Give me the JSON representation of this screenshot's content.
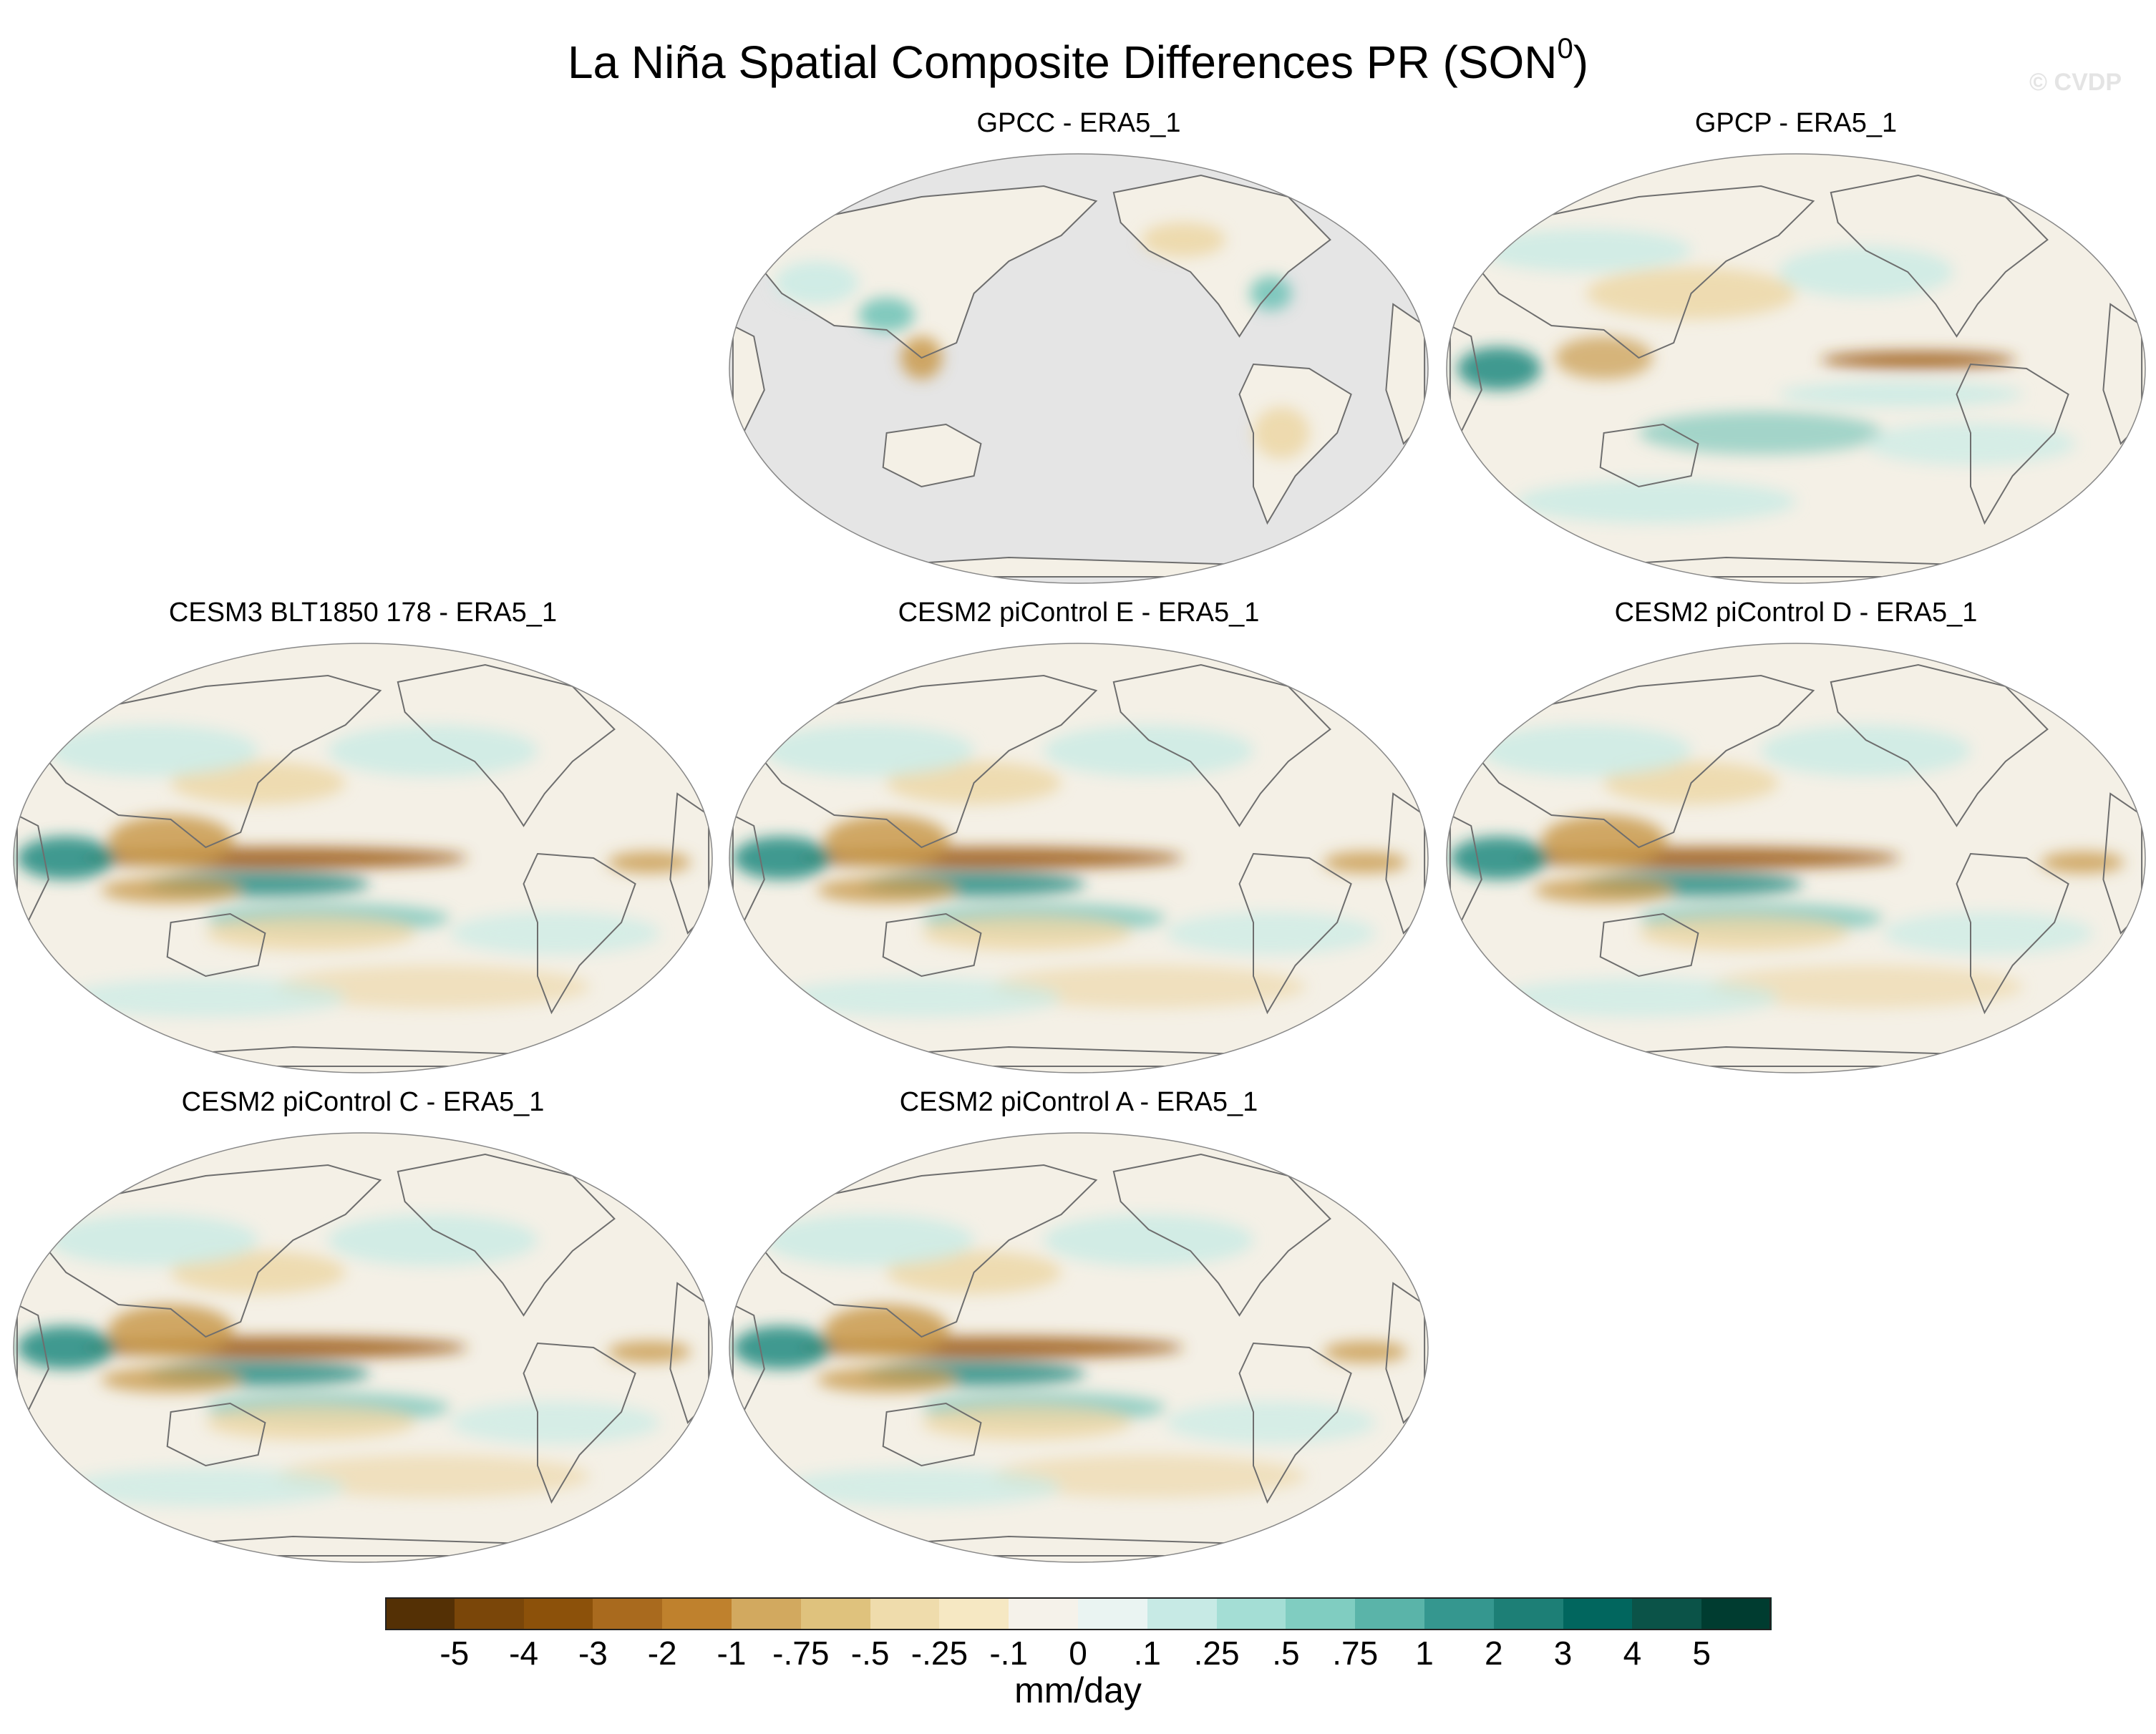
{
  "figure": {
    "title_main": "La Niña Spatial Composite Differences PR (SON",
    "title_sup": "0",
    "title_close": ")",
    "watermark": "© CVDP"
  },
  "panels": [
    {
      "id": "gpcc",
      "title": "GPCC - ERA5_1",
      "land_only": true
    },
    {
      "id": "gpcp",
      "title": "GPCP - ERA5_1",
      "land_only": false
    },
    {
      "id": "cesm3",
      "title": "CESM3 BLT1850 178 - ERA5_1",
      "land_only": false
    },
    {
      "id": "cesm2e",
      "title": "CESM2 piControl E - ERA5_1",
      "land_only": false
    },
    {
      "id": "cesm2d",
      "title": "CESM2 piControl D - ERA5_1",
      "land_only": false
    },
    {
      "id": "cesm2c",
      "title": "CESM2 piControl C - ERA5_1",
      "land_only": false
    },
    {
      "id": "cesm2a",
      "title": "CESM2 piControl A - ERA5_1",
      "land_only": false
    }
  ],
  "colorbar": {
    "units": "mm/day",
    "labels": [
      "-5",
      "-4",
      "-3",
      "-2",
      "-1",
      "-.75",
      "-.5",
      "-.25",
      "-.1",
      "0",
      ".1",
      ".25",
      ".5",
      ".75",
      "1",
      "2",
      "3",
      "4",
      "5"
    ],
    "colors": [
      "#543005",
      "#7a4609",
      "#8c510a",
      "#a96a1e",
      "#bf812d",
      "#d2a95f",
      "#dfc27d",
      "#efdcac",
      "#f6e8c3",
      "#f5f2ea",
      "#eaf4f2",
      "#c7eae5",
      "#a4ded5",
      "#80cdc1",
      "#5ab4a9",
      "#35978f",
      "#1d7f76",
      "#01665e",
      "#0b5348",
      "#003c30"
    ]
  },
  "colors": {
    "land_gray": "#e5e5e5",
    "coast": "#6e6e6e",
    "dry_strong": "#a0601c",
    "dry_mid": "#c99a4d",
    "dry_light": "#ecd6a4",
    "wet_strong": "#1f8a80",
    "wet_mid": "#6cc2b6",
    "wet_light": "#c9ebe5",
    "neutral": "#f4f0e6"
  }
}
